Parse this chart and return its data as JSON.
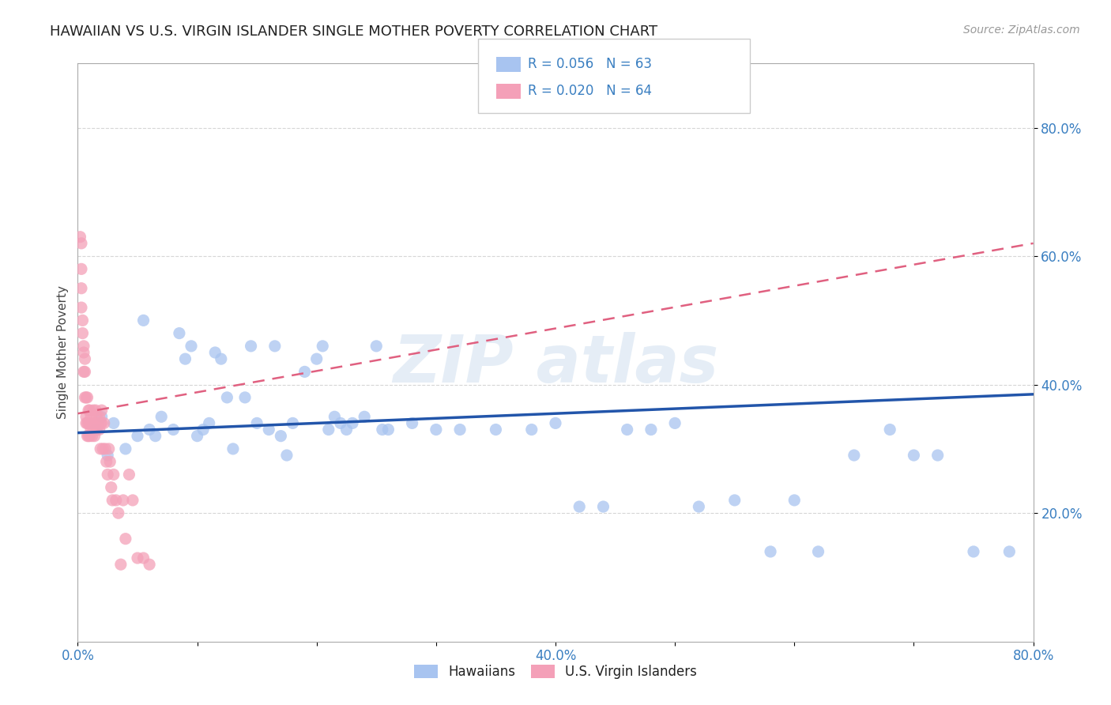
{
  "title": "HAWAIIAN VS U.S. VIRGIN ISLANDER SINGLE MOTHER POVERTY CORRELATION CHART",
  "source": "Source: ZipAtlas.com",
  "ylabel": "Single Mother Poverty",
  "xlim": [
    0.0,
    0.8
  ],
  "ylim": [
    0.0,
    0.9
  ],
  "xtick_positions": [
    0.0,
    0.1,
    0.2,
    0.3,
    0.4,
    0.5,
    0.6,
    0.7,
    0.8
  ],
  "xticklabels": [
    "0.0%",
    "",
    "",
    "",
    "40.0%",
    "",
    "",
    "",
    "80.0%"
  ],
  "ytick_positions": [
    0.2,
    0.4,
    0.6,
    0.8
  ],
  "ytick_labels": [
    "20.0%",
    "40.0%",
    "60.0%",
    "80.0%"
  ],
  "hawaiian_color": "#a8c4f0",
  "virgin_color": "#f4a0b8",
  "hawaiian_line_color": "#2255aa",
  "virgin_line_color": "#e06080",
  "hawaiian_line": [
    0.0,
    0.8,
    0.325,
    0.385
  ],
  "virgin_line": [
    0.0,
    0.8,
    0.355,
    0.62
  ],
  "hawaiian_x": [
    0.015,
    0.02,
    0.025,
    0.03,
    0.04,
    0.05,
    0.055,
    0.06,
    0.065,
    0.07,
    0.08,
    0.085,
    0.09,
    0.095,
    0.1,
    0.105,
    0.11,
    0.115,
    0.12,
    0.125,
    0.13,
    0.14,
    0.145,
    0.15,
    0.16,
    0.165,
    0.17,
    0.175,
    0.18,
    0.19,
    0.2,
    0.205,
    0.21,
    0.215,
    0.22,
    0.225,
    0.23,
    0.24,
    0.25,
    0.255,
    0.26,
    0.28,
    0.3,
    0.32,
    0.35,
    0.38,
    0.4,
    0.42,
    0.44,
    0.46,
    0.48,
    0.5,
    0.52,
    0.55,
    0.58,
    0.6,
    0.62,
    0.65,
    0.68,
    0.7,
    0.72,
    0.75,
    0.78
  ],
  "hawaiian_y": [
    0.33,
    0.35,
    0.29,
    0.34,
    0.3,
    0.32,
    0.5,
    0.33,
    0.32,
    0.35,
    0.33,
    0.48,
    0.44,
    0.46,
    0.32,
    0.33,
    0.34,
    0.45,
    0.44,
    0.38,
    0.3,
    0.38,
    0.46,
    0.34,
    0.33,
    0.46,
    0.32,
    0.29,
    0.34,
    0.42,
    0.44,
    0.46,
    0.33,
    0.35,
    0.34,
    0.33,
    0.34,
    0.35,
    0.46,
    0.33,
    0.33,
    0.34,
    0.33,
    0.33,
    0.33,
    0.33,
    0.34,
    0.21,
    0.21,
    0.33,
    0.33,
    0.34,
    0.21,
    0.22,
    0.14,
    0.22,
    0.14,
    0.29,
    0.33,
    0.29,
    0.29,
    0.14,
    0.14
  ],
  "virgin_x": [
    0.002,
    0.003,
    0.003,
    0.003,
    0.003,
    0.004,
    0.004,
    0.005,
    0.005,
    0.005,
    0.006,
    0.006,
    0.006,
    0.007,
    0.007,
    0.007,
    0.008,
    0.008,
    0.008,
    0.009,
    0.009,
    0.009,
    0.01,
    0.01,
    0.01,
    0.011,
    0.011,
    0.012,
    0.012,
    0.013,
    0.013,
    0.014,
    0.014,
    0.015,
    0.015,
    0.016,
    0.016,
    0.017,
    0.018,
    0.018,
    0.019,
    0.019,
    0.02,
    0.02,
    0.021,
    0.022,
    0.023,
    0.024,
    0.025,
    0.026,
    0.027,
    0.028,
    0.029,
    0.03,
    0.032,
    0.034,
    0.036,
    0.038,
    0.04,
    0.043,
    0.046,
    0.05,
    0.055,
    0.06
  ],
  "virgin_y": [
    0.63,
    0.62,
    0.58,
    0.55,
    0.52,
    0.5,
    0.48,
    0.45,
    0.42,
    0.46,
    0.44,
    0.42,
    0.38,
    0.38,
    0.35,
    0.34,
    0.38,
    0.34,
    0.32,
    0.36,
    0.34,
    0.32,
    0.36,
    0.34,
    0.32,
    0.35,
    0.33,
    0.34,
    0.32,
    0.36,
    0.33,
    0.34,
    0.32,
    0.36,
    0.34,
    0.33,
    0.35,
    0.34,
    0.35,
    0.33,
    0.34,
    0.3,
    0.36,
    0.34,
    0.3,
    0.34,
    0.3,
    0.28,
    0.26,
    0.3,
    0.28,
    0.24,
    0.22,
    0.26,
    0.22,
    0.2,
    0.12,
    0.22,
    0.16,
    0.26,
    0.22,
    0.13,
    0.13,
    0.12
  ]
}
